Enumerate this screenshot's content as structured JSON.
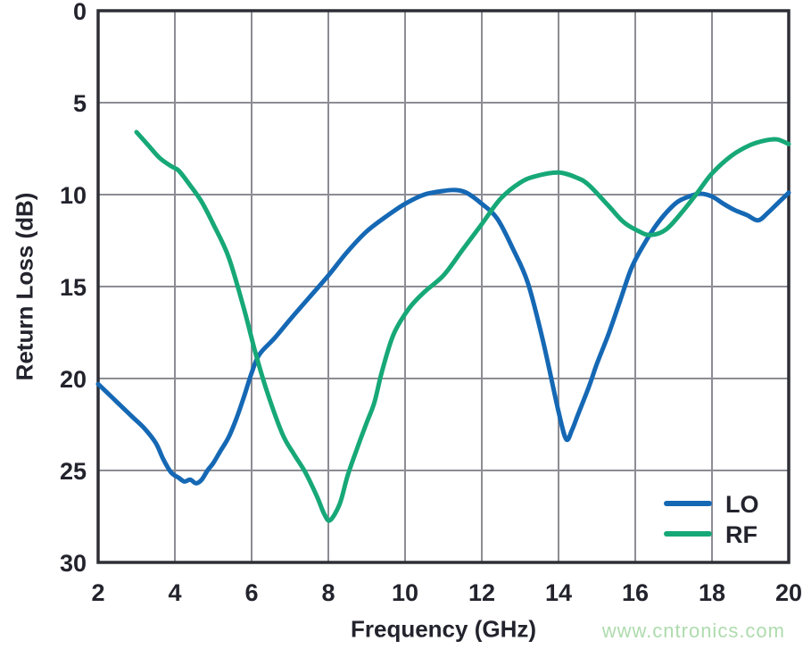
{
  "chart_data": {
    "type": "line",
    "title": "",
    "xlabel": "Frequency (GHz)",
    "ylabel": "Return Loss (dB)",
    "xlim": [
      2,
      20
    ],
    "ylim": [
      0,
      30
    ],
    "y_axis_direction": "down",
    "x_ticks": [
      2,
      4,
      6,
      8,
      10,
      12,
      14,
      16,
      18,
      20
    ],
    "y_ticks": [
      0,
      5,
      10,
      15,
      20,
      25,
      30
    ],
    "grid": true,
    "legend_position": "lower-right-inside",
    "series": [
      {
        "name": "LO",
        "color": "#1568b4",
        "points": [
          [
            2.0,
            20.3
          ],
          [
            2.3,
            20.9
          ],
          [
            2.6,
            21.5
          ],
          [
            2.9,
            22.1
          ],
          [
            3.2,
            22.7
          ],
          [
            3.5,
            23.5
          ],
          [
            3.7,
            24.4
          ],
          [
            3.9,
            25.1
          ],
          [
            4.1,
            25.4
          ],
          [
            4.25,
            25.6
          ],
          [
            4.4,
            25.5
          ],
          [
            4.55,
            25.7
          ],
          [
            4.7,
            25.5
          ],
          [
            4.85,
            25.0
          ],
          [
            5.0,
            24.6
          ],
          [
            5.2,
            23.9
          ],
          [
            5.4,
            23.2
          ],
          [
            5.6,
            22.2
          ],
          [
            5.8,
            21.0
          ],
          [
            6.0,
            19.7
          ],
          [
            6.2,
            18.7
          ],
          [
            6.6,
            17.8
          ],
          [
            7.0,
            16.8
          ],
          [
            7.5,
            15.6
          ],
          [
            8.0,
            14.4
          ],
          [
            8.5,
            13.1
          ],
          [
            9.0,
            12.0
          ],
          [
            9.5,
            11.2
          ],
          [
            10.0,
            10.5
          ],
          [
            10.5,
            10.0
          ],
          [
            11.0,
            9.8
          ],
          [
            11.3,
            9.75
          ],
          [
            11.6,
            9.9
          ],
          [
            12.0,
            10.5
          ],
          [
            12.4,
            11.3
          ],
          [
            12.8,
            12.9
          ],
          [
            13.2,
            14.8
          ],
          [
            13.6,
            18.0
          ],
          [
            14.0,
            21.8
          ],
          [
            14.2,
            23.3
          ],
          [
            14.35,
            22.8
          ],
          [
            14.5,
            22.0
          ],
          [
            14.8,
            20.4
          ],
          [
            15.0,
            19.2
          ],
          [
            15.3,
            17.6
          ],
          [
            15.6,
            15.8
          ],
          [
            15.9,
            14.0
          ],
          [
            16.2,
            12.8
          ],
          [
            16.5,
            11.8
          ],
          [
            16.8,
            11.0
          ],
          [
            17.1,
            10.4
          ],
          [
            17.4,
            10.1
          ],
          [
            17.7,
            9.95
          ],
          [
            18.0,
            10.1
          ],
          [
            18.3,
            10.5
          ],
          [
            18.6,
            10.85
          ],
          [
            18.9,
            11.1
          ],
          [
            19.2,
            11.4
          ],
          [
            19.45,
            11.0
          ],
          [
            19.7,
            10.5
          ],
          [
            20.0,
            9.9
          ]
        ]
      },
      {
        "name": "RF",
        "color": "#17a878",
        "points": [
          [
            3.0,
            6.6
          ],
          [
            3.3,
            7.3
          ],
          [
            3.6,
            8.0
          ],
          [
            3.9,
            8.45
          ],
          [
            4.1,
            8.7
          ],
          [
            4.4,
            9.5
          ],
          [
            4.7,
            10.4
          ],
          [
            5.0,
            11.6
          ],
          [
            5.4,
            13.4
          ],
          [
            5.8,
            16.2
          ],
          [
            6.1,
            18.6
          ],
          [
            6.4,
            20.7
          ],
          [
            6.8,
            23.0
          ],
          [
            7.1,
            24.1
          ],
          [
            7.4,
            25.1
          ],
          [
            7.7,
            26.4
          ],
          [
            7.9,
            27.4
          ],
          [
            8.05,
            27.7
          ],
          [
            8.3,
            26.8
          ],
          [
            8.5,
            25.3
          ],
          [
            8.75,
            23.8
          ],
          [
            9.0,
            22.4
          ],
          [
            9.2,
            21.3
          ],
          [
            9.4,
            19.6
          ],
          [
            9.7,
            17.6
          ],
          [
            10.1,
            16.2
          ],
          [
            10.5,
            15.3
          ],
          [
            11.0,
            14.4
          ],
          [
            11.5,
            13.0
          ],
          [
            12.0,
            11.6
          ],
          [
            12.5,
            10.2
          ],
          [
            13.0,
            9.35
          ],
          [
            13.4,
            9.0
          ],
          [
            14.0,
            8.8
          ],
          [
            14.5,
            9.1
          ],
          [
            14.8,
            9.5
          ],
          [
            15.3,
            10.6
          ],
          [
            15.7,
            11.5
          ],
          [
            16.1,
            12.0
          ],
          [
            16.4,
            12.2
          ],
          [
            16.8,
            11.9
          ],
          [
            17.2,
            11.0
          ],
          [
            17.6,
            9.95
          ],
          [
            18.0,
            8.85
          ],
          [
            18.5,
            7.9
          ],
          [
            19.0,
            7.3
          ],
          [
            19.4,
            7.05
          ],
          [
            19.7,
            7.0
          ],
          [
            20.0,
            7.25
          ]
        ]
      }
    ]
  },
  "legend": {
    "items": [
      {
        "label": "LO",
        "color": "#1568b4"
      },
      {
        "label": "RF",
        "color": "#17a878"
      }
    ]
  },
  "watermark": {
    "text": "www.cntronics.com",
    "color": "#aedbae"
  },
  "colors": {
    "background": "#ffffff",
    "grid": "#8c8c94",
    "frame": "#2e2e36",
    "text": "#23232d"
  }
}
